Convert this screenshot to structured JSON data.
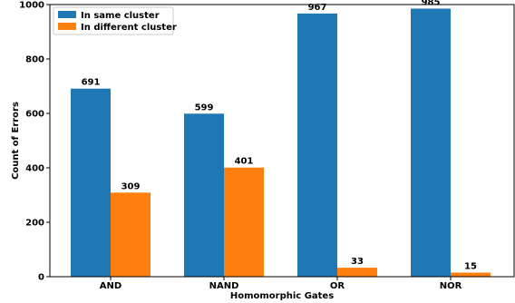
{
  "chart_data": {
    "type": "bar",
    "categories": [
      "AND",
      "NAND",
      "OR",
      "NOR"
    ],
    "series": [
      {
        "name": "In same cluster",
        "values": [
          691,
          599,
          967,
          985
        ],
        "color": "#1f77b4"
      },
      {
        "name": "In different cluster",
        "values": [
          309,
          401,
          33,
          15
        ],
        "color": "#ff7f0e"
      }
    ],
    "title": "",
    "xlabel": "Homomorphic Gates",
    "ylabel": "Count of Errors",
    "ylim": [
      0,
      1000
    ],
    "yticks": [
      0,
      200,
      400,
      600,
      800,
      1000
    ],
    "grid": false,
    "legend_position": "top-left",
    "data_labels": true
  }
}
